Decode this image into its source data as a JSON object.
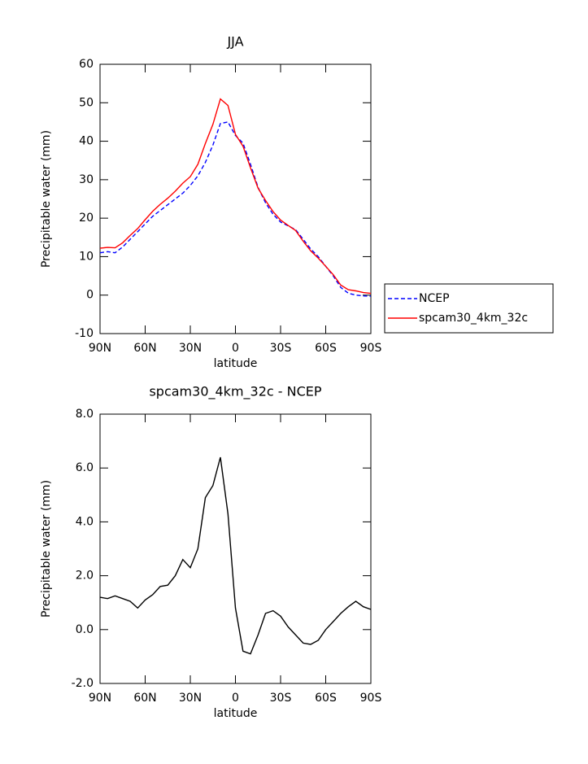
{
  "chart_data": [
    {
      "type": "line",
      "title": "JJA",
      "xlabel": "latitude",
      "ylabel": "Precipitable water (mm)",
      "x": [
        90,
        85,
        80,
        75,
        70,
        65,
        60,
        55,
        50,
        45,
        40,
        35,
        30,
        25,
        20,
        15,
        10,
        5,
        0,
        -5,
        -10,
        -15,
        -20,
        -25,
        -30,
        -35,
        -40,
        -45,
        -50,
        -55,
        -60,
        -65,
        -70,
        -75,
        -80,
        -85,
        -90
      ],
      "series": [
        {
          "name": "NCEP",
          "color": "#0000ff",
          "dash": true,
          "values": [
            11,
            11.3,
            11,
            12.5,
            14.5,
            16.5,
            18.5,
            20.5,
            22,
            23.5,
            25,
            26.5,
            28.5,
            31,
            34.5,
            39,
            44.6,
            45,
            41.5,
            39.5,
            34,
            28,
            24,
            21,
            19,
            18,
            17,
            14.5,
            12,
            10,
            7.5,
            5,
            2,
            0.5,
            0,
            -0.2,
            -0.3
          ]
        },
        {
          "name": "spcam30_4km_32c",
          "color": "#ff0000",
          "dash": false,
          "values": [
            12.2,
            12.4,
            12.3,
            13.6,
            15.5,
            17.3,
            19.6,
            21.8,
            23.6,
            25.2,
            27,
            29.1,
            30.8,
            34,
            39.4,
            44.4,
            51,
            49.3,
            41.8,
            38.7,
            33.1,
            27.8,
            24.6,
            21.7,
            19.5,
            18.1,
            16.8,
            14,
            11.5,
            9.6,
            7.5,
            5.3,
            2.6,
            1.4,
            1.1,
            0.65,
            0.45
          ]
        }
      ],
      "xlim": [
        90,
        -90
      ],
      "xticks": [
        {
          "value": 90,
          "label": "90N"
        },
        {
          "value": 60,
          "label": "60N"
        },
        {
          "value": 30,
          "label": "30N"
        },
        0,
        {
          "value": -30,
          "label": "30S"
        },
        {
          "value": -60,
          "label": "60S"
        },
        {
          "value": -90,
          "label": "90S"
        }
      ],
      "ylim": [
        -10,
        60
      ],
      "yticks": [
        -10,
        0,
        10,
        20,
        30,
        40,
        50,
        60
      ],
      "legend": "outside-right"
    },
    {
      "type": "line",
      "title": "spcam30_4km_32c - NCEP",
      "xlabel": "latitude",
      "ylabel": "Precipitable water (mm)",
      "x": [
        90,
        85,
        80,
        75,
        70,
        65,
        60,
        55,
        50,
        45,
        40,
        35,
        30,
        25,
        20,
        15,
        10,
        5,
        0,
        -5,
        -10,
        -15,
        -20,
        -25,
        -30,
        -35,
        -40,
        -45,
        -50,
        -55,
        -60,
        -65,
        -70,
        -75,
        -80,
        -85,
        -90
      ],
      "series": [
        {
          "color": "#000000",
          "dash": false,
          "values": [
            1.2,
            1.15,
            1.25,
            1.15,
            1.05,
            0.8,
            1.1,
            1.3,
            1.6,
            1.65,
            2.0,
            2.6,
            2.3,
            3.0,
            4.9,
            5.35,
            6.4,
            4.3,
            0.8,
            -0.8,
            -0.9,
            -0.2,
            0.6,
            0.7,
            0.5,
            0.1,
            -0.2,
            -0.5,
            -0.55,
            -0.4,
            0,
            0.3,
            0.6,
            0.85,
            1.05,
            0.85,
            0.75
          ]
        }
      ],
      "xlim": [
        90,
        -90
      ],
      "xticks": [
        {
          "value": 90,
          "label": "90N"
        },
        {
          "value": 60,
          "label": "60N"
        },
        {
          "value": 30,
          "label": "30N"
        },
        0,
        {
          "value": -30,
          "label": "30S"
        },
        {
          "value": -60,
          "label": "60S"
        },
        {
          "value": -90,
          "label": "90S"
        }
      ],
      "ylim": [
        -2,
        8
      ],
      "yticks": [
        {
          "value": -2,
          "label": "-2.0"
        },
        {
          "value": 0,
          "label": "0.0"
        },
        {
          "value": 2,
          "label": "2.0"
        },
        {
          "value": 4,
          "label": "4.0"
        },
        {
          "value": 6,
          "label": "6.0"
        },
        {
          "value": 8,
          "label": "8.0"
        }
      ]
    }
  ]
}
